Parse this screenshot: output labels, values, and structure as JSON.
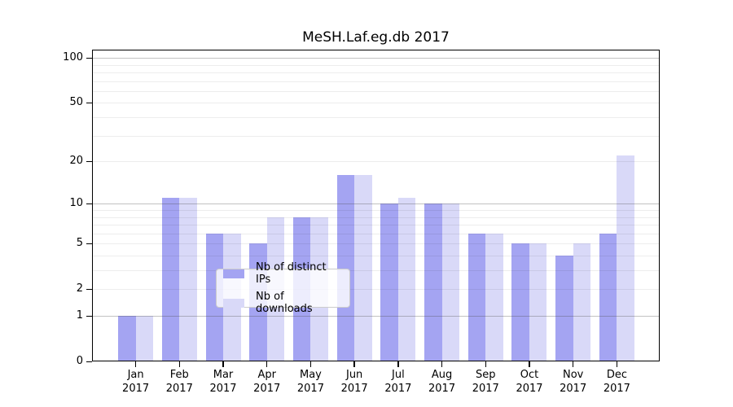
{
  "title": "MeSH.Laf.eg.db 2017",
  "colors": {
    "ips_bar": "#a4a4f2",
    "downloads_bar": "#d9d9f8",
    "grid_major": "#c6c6c6",
    "grid_minor": "#ececec",
    "spine": "#000000"
  },
  "legend": {
    "items": [
      {
        "label": "Nb of distinct IPs",
        "series": "ips"
      },
      {
        "label": "Nb of downloads",
        "series": "downloads"
      }
    ]
  },
  "x_axis": {
    "months": [
      "Jan",
      "Feb",
      "Mar",
      "Apr",
      "May",
      "Jun",
      "Jul",
      "Aug",
      "Sep",
      "Oct",
      "Nov",
      "Dec"
    ],
    "year": "2017"
  },
  "y_axis": {
    "ticks": [
      0,
      1,
      2,
      5,
      10,
      20,
      50,
      100
    ],
    "minor_gridlines": [
      2,
      3,
      4,
      5,
      6,
      7,
      8,
      9,
      20,
      30,
      40,
      50,
      60,
      70,
      80,
      90
    ],
    "major_gridlines": [
      1,
      10,
      100
    ]
  },
  "chart_data": {
    "type": "bar",
    "title": "MeSH.Laf.eg.db 2017",
    "categories": [
      "Jan 2017",
      "Feb 2017",
      "Mar 2017",
      "Apr 2017",
      "May 2017",
      "Jun 2017",
      "Jul 2017",
      "Aug 2017",
      "Sep 2017",
      "Oct 2017",
      "Nov 2017",
      "Dec 2017"
    ],
    "series": [
      {
        "name": "Nb of distinct IPs",
        "color": "#a4a4f2",
        "values": [
          1,
          11,
          6,
          5,
          8,
          16,
          10,
          10,
          6,
          5,
          4,
          6
        ]
      },
      {
        "name": "Nb of downloads",
        "color": "#d9d9f8",
        "values": [
          1,
          11,
          6,
          8,
          8,
          16,
          11,
          10,
          6,
          5,
          5,
          22
        ]
      }
    ],
    "xlabel": "",
    "ylabel": "",
    "yscale": "log1p",
    "yticks": [
      0,
      1,
      2,
      5,
      10,
      20,
      50,
      100
    ],
    "ylim": [
      0,
      113
    ],
    "grid": "on",
    "legend_position": "lower center"
  }
}
